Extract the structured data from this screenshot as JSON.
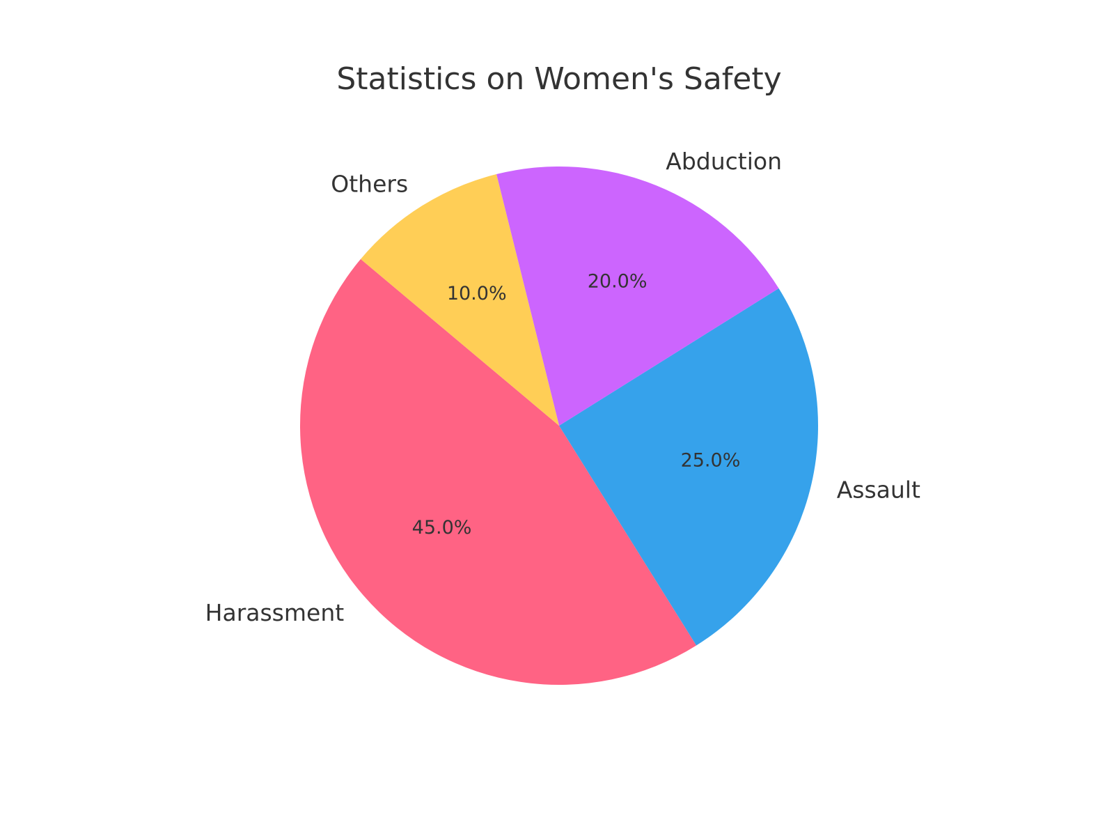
{
  "chart_data": {
    "type": "pie",
    "title": "Statistics on Women's Safety",
    "categories": [
      "Harassment",
      "Assault",
      "Abduction",
      "Others"
    ],
    "values": [
      45,
      25,
      20,
      10
    ],
    "percent_labels": [
      "45.0%",
      "25.0%",
      "20.0%",
      "10.0%"
    ],
    "colors": [
      "#ff6384",
      "#36a2eb",
      "#cc65fe",
      "#ffce56"
    ],
    "start_angle_deg": 140,
    "direction": "counterclockwise",
    "legend": "none"
  }
}
